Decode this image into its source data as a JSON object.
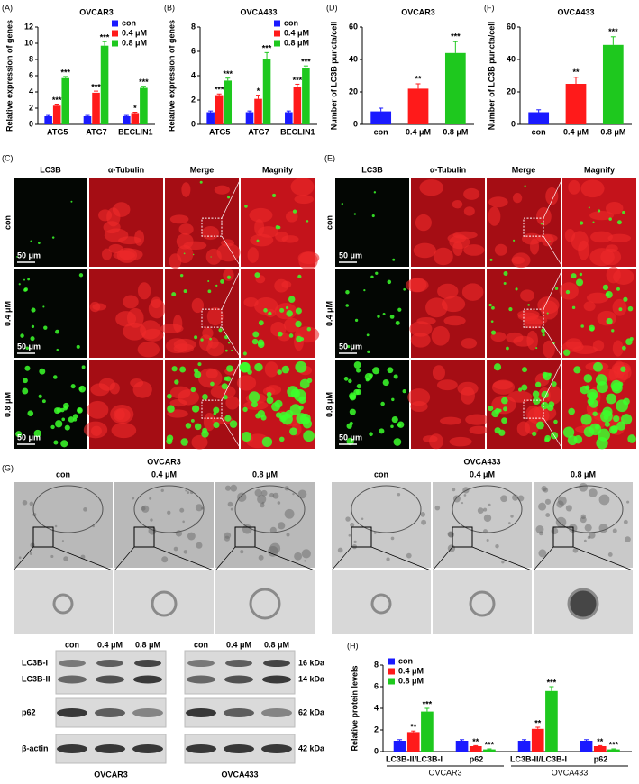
{
  "chart_data": [
    {
      "type": "bar",
      "letter": "(A)",
      "title": "OVCAR3",
      "ylabel": "Relative expression of genes",
      "categories": [
        "ATG5",
        "ATG7",
        "BECLIN1"
      ],
      "series": [
        {
          "name": "con",
          "color": "#1a1aff",
          "values": [
            1,
            1,
            1
          ],
          "errors": [
            0.1,
            0.1,
            0.1
          ]
        },
        {
          "name": "0.4 μM",
          "color": "#ff1a1a",
          "values": [
            2.3,
            3.9,
            1.4
          ],
          "errors": [
            0.2,
            0.2,
            0.1
          ],
          "significance": [
            "***",
            "***",
            "*"
          ]
        },
        {
          "name": "0.8 μM",
          "color": "#1ec81e",
          "values": [
            5.7,
            9.7,
            4.5
          ],
          "errors": [
            0.2,
            0.5,
            0.2
          ],
          "significance": [
            "***",
            "***",
            "***"
          ]
        }
      ],
      "ylim": [
        0,
        12
      ],
      "yticks": [
        0,
        2,
        4,
        6,
        8,
        10,
        12
      ],
      "legend": "upper right"
    },
    {
      "type": "bar",
      "letter": "(B)",
      "title": "OVCA433",
      "ylabel": "Relative expression of genes",
      "categories": [
        "ATG5",
        "ATG7",
        "BECLIN1"
      ],
      "series": [
        {
          "name": "con",
          "color": "#1a1aff",
          "values": [
            1,
            1,
            1
          ],
          "errors": [
            0.1,
            0.1,
            0.1
          ]
        },
        {
          "name": "0.4 μM",
          "color": "#ff1a1a",
          "values": [
            2.4,
            2.1,
            3.1
          ],
          "errors": [
            0.1,
            0.3,
            0.2
          ],
          "significance": [
            "***",
            "*",
            "***"
          ]
        },
        {
          "name": "0.8 μM",
          "color": "#1ec81e",
          "values": [
            3.6,
            5.4,
            4.6
          ],
          "errors": [
            0.2,
            0.5,
            0.2
          ],
          "significance": [
            "***",
            "***",
            "***"
          ]
        }
      ],
      "ylim": [
        0,
        8
      ],
      "yticks": [
        0,
        2,
        4,
        6,
        8
      ],
      "legend": "upper right"
    },
    {
      "type": "bar",
      "letter": "(D)",
      "title": "OVCAR3",
      "ylabel": "Number of LC3B puncta/cell",
      "categories": [
        "con",
        "0.4 μM",
        "0.8 μM"
      ],
      "values": [
        8,
        22,
        44
      ],
      "errors": [
        2,
        3,
        7
      ],
      "colors": [
        "#1a1aff",
        "#ff1a1a",
        "#1ec81e"
      ],
      "significance": [
        null,
        "**",
        "***"
      ],
      "ylim": [
        0,
        60
      ],
      "yticks": [
        0,
        20,
        40,
        60
      ]
    },
    {
      "type": "bar",
      "letter": "(F)",
      "title": "OVCA433",
      "ylabel": "Number of LC3B puncta/cell",
      "categories": [
        "con",
        "0.4 μM",
        "0.8 μM"
      ],
      "values": [
        7.5,
        25,
        49
      ],
      "errors": [
        1.5,
        4,
        5
      ],
      "colors": [
        "#1a1aff",
        "#ff1a1a",
        "#1ec81e"
      ],
      "significance": [
        null,
        "**",
        "***"
      ],
      "ylim": [
        0,
        60
      ],
      "yticks": [
        0,
        20,
        40,
        60
      ]
    },
    {
      "type": "bar",
      "letter": "(H)",
      "ylabel": "Relative protein levels",
      "categories": [
        "LC3B-II/LC3B-I",
        "p62",
        "LC3B-II/LC3B-I",
        "p62"
      ],
      "group_labels": [
        "OVCAR3",
        "OVCA433"
      ],
      "series": [
        {
          "name": "con",
          "color": "#1a1aff",
          "values": [
            1,
            1,
            1,
            1
          ],
          "errors": [
            0.1,
            0.1,
            0.1,
            0.1
          ]
        },
        {
          "name": "0.4 μM",
          "color": "#ff1a1a",
          "values": [
            1.8,
            0.5,
            2.1,
            0.5
          ],
          "errors": [
            0.1,
            0.05,
            0.15,
            0.05
          ],
          "significance": [
            "**",
            "**",
            "**",
            "**"
          ]
        },
        {
          "name": "0.8 μM",
          "color": "#1ec81e",
          "values": [
            3.7,
            0.2,
            5.6,
            0.2
          ],
          "errors": [
            0.3,
            0.05,
            0.4,
            0.05
          ],
          "significance": [
            "***",
            "***",
            "***",
            "***"
          ]
        }
      ],
      "ylim": [
        0,
        8
      ],
      "yticks": [
        0,
        2,
        4,
        6,
        8
      ],
      "legend": "upper left"
    }
  ],
  "microscopy": [
    {
      "letter": "(C)",
      "columns": [
        "LC3B",
        "α-Tubulin",
        "Merge",
        "Magnify"
      ],
      "rows": [
        "con",
        "0.4 μM",
        "0.8 μM"
      ],
      "scale_bar": "50 μm"
    },
    {
      "letter": "(E)",
      "columns": [
        "LC3B",
        "α-Tubulin",
        "Merge",
        "Magnify"
      ],
      "rows": [
        "con",
        "0.4 μM",
        "0.8 μM"
      ],
      "scale_bar": "50 μm"
    }
  ],
  "tem": {
    "letter": "(G)",
    "groups": [
      {
        "title": "OVCAR3",
        "columns": [
          "con",
          "0.4 μM",
          "0.8 μM"
        ]
      },
      {
        "title": "OVCA433",
        "columns": [
          "con",
          "0.4 μM",
          "0.8 μM"
        ]
      }
    ]
  },
  "western": {
    "blots": [
      {
        "title": "OVCAR3",
        "columns": [
          "con",
          "0.4 μM",
          "0.8 μM"
        ]
      },
      {
        "title": "OVCA433",
        "columns": [
          "con",
          "0.4 μM",
          "0.8 μM"
        ]
      }
    ],
    "rows": [
      "LC3B-I",
      "LC3B-II",
      "p62",
      "β-actin"
    ],
    "markers": [
      "16 kDa",
      "14 kDa",
      "62 kDa",
      "42 kDa"
    ]
  }
}
